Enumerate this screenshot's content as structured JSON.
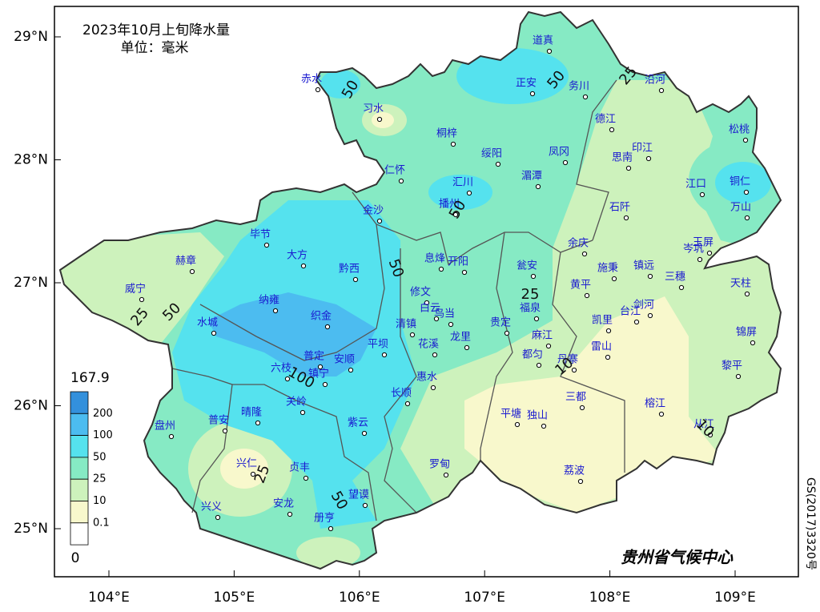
{
  "map": {
    "title": "2023年10月上旬降水量",
    "unit": "单位：毫米",
    "credit": "贵州省气候中心",
    "license": "GS(2017)3320号",
    "lon_ticks": [
      {
        "value": 104,
        "label": "104°E"
      },
      {
        "value": 105,
        "label": "105°E"
      },
      {
        "value": 106,
        "label": "106°E"
      },
      {
        "value": 107,
        "label": "107°E"
      },
      {
        "value": 108,
        "label": "108°E"
      },
      {
        "value": 109,
        "label": "109°E"
      }
    ],
    "lat_ticks": [
      {
        "value": 25,
        "label": "25°N"
      },
      {
        "value": 26,
        "label": "26°N"
      },
      {
        "value": 27,
        "label": "27°N"
      },
      {
        "value": 28,
        "label": "28°N"
      },
      {
        "value": 29,
        "label": "29°N"
      }
    ],
    "legend": {
      "max": 167.9,
      "min": 0,
      "levels": [
        200,
        100,
        50,
        25,
        10,
        0.1
      ],
      "colors": [
        "#3390dc",
        "#4cbcf0",
        "#55e2ee",
        "#86eac4",
        "#cdf2bc",
        "#f8f8cc",
        "#ffffff"
      ]
    },
    "contour_labels": [
      50,
      50,
      25,
      50,
      50,
      25,
      50,
      25,
      100,
      25,
      50,
      10,
      10
    ],
    "stations": [
      "赤水",
      "习水",
      "道真",
      "正安",
      "务川",
      "沿河",
      "桐梓",
      "绥阳",
      "凤冈",
      "德江",
      "思南",
      "印江",
      "松桃",
      "仁怀",
      "汇川",
      "湄潭",
      "江口",
      "铜仁",
      "石阡",
      "万山",
      "播州",
      "金沙",
      "毕节",
      "大方",
      "黔西",
      "息烽",
      "开阳",
      "余庆",
      "施秉",
      "镇远",
      "岑巩",
      "玉屏",
      "三穗",
      "赫章",
      "威宁",
      "瓮安",
      "黄平",
      "天柱",
      "修文",
      "白云",
      "乌当",
      "纳雍",
      "织金",
      "清镇",
      "福泉",
      "贵定",
      "凯里",
      "台江",
      "剑河",
      "锦屏",
      "水城",
      "平坝",
      "花溪",
      "龙里",
      "麻江",
      "都匀",
      "雷山",
      "六枝",
      "普定",
      "安顺",
      "镇宁",
      "黎平",
      "丹寨",
      "惠水",
      "关岭",
      "长顺",
      "三都",
      "榕江",
      "盘州",
      "普安",
      "晴隆",
      "紫云",
      "平塘",
      "独山",
      "从江",
      "兴仁",
      "贞丰",
      "罗甸",
      "荔波",
      "兴义",
      "安龙",
      "望谟",
      "册亨"
    ]
  }
}
